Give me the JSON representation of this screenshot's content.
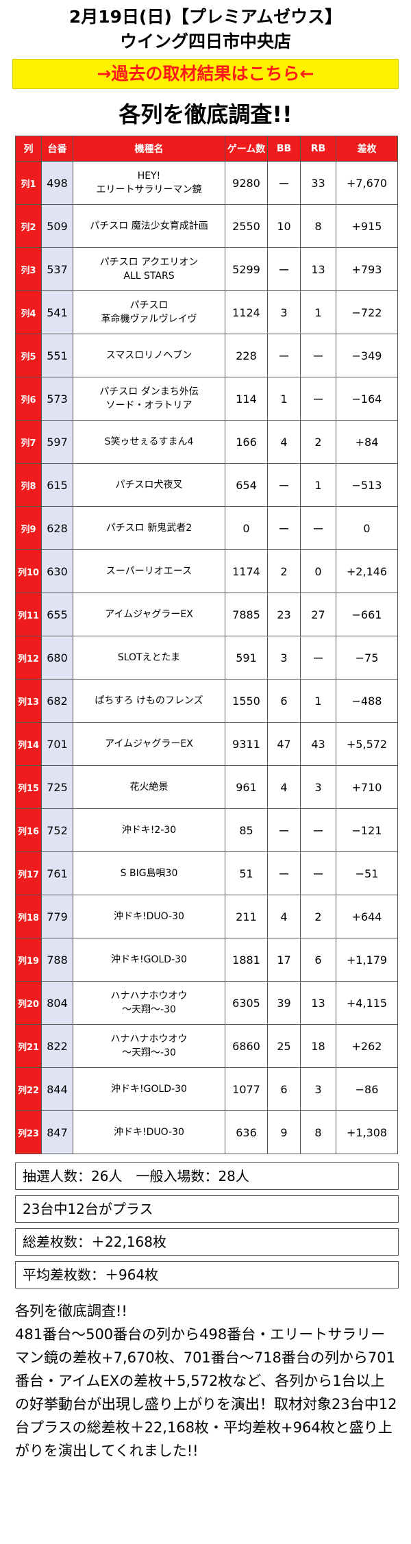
{
  "header": {
    "title": "2月19日(日)【プレミアムゼウス】",
    "store": "ウイング四日市中央店",
    "link": "→過去の取材結果はこちら←",
    "heading": "各列を徹底調査!!"
  },
  "table": {
    "columns": [
      "列",
      "台番",
      "機種名",
      "ゲーム数",
      "BB",
      "RB",
      "差枚"
    ],
    "rows": [
      {
        "row": "列1",
        "unit": "498",
        "name": "HEY!\nエリートサラリーマン鏡",
        "games": "9280",
        "bb": "ー",
        "rb": "33",
        "diff": "+7,670"
      },
      {
        "row": "列2",
        "unit": "509",
        "name": "パチスロ 魔法少女育成計画",
        "games": "2550",
        "bb": "10",
        "rb": "8",
        "diff": "+915"
      },
      {
        "row": "列3",
        "unit": "537",
        "name": "パチスロ アクエリオン\nALL STARS",
        "games": "5299",
        "bb": "ー",
        "rb": "13",
        "diff": "+793"
      },
      {
        "row": "列4",
        "unit": "541",
        "name": "パチスロ\n革命機ヴァルヴレイヴ",
        "games": "1124",
        "bb": "3",
        "rb": "1",
        "diff": "−722"
      },
      {
        "row": "列5",
        "unit": "551",
        "name": "スマスロリノヘブン",
        "games": "228",
        "bb": "ー",
        "rb": "ー",
        "diff": "−349"
      },
      {
        "row": "列6",
        "unit": "573",
        "name": "パチスロ ダンまち外伝\nソード・オラトリア",
        "games": "114",
        "bb": "1",
        "rb": "ー",
        "diff": "−164"
      },
      {
        "row": "列7",
        "unit": "597",
        "name": "S笑ゥせぇるすまん4",
        "games": "166",
        "bb": "4",
        "rb": "2",
        "diff": "+84"
      },
      {
        "row": "列8",
        "unit": "615",
        "name": "パチスロ犬夜叉",
        "games": "654",
        "bb": "ー",
        "rb": "1",
        "diff": "−513"
      },
      {
        "row": "列9",
        "unit": "628",
        "name": "パチスロ 新鬼武者2",
        "games": "0",
        "bb": "ー",
        "rb": "ー",
        "diff": "0"
      },
      {
        "row": "列10",
        "unit": "630",
        "name": "スーパーリオエース",
        "games": "1174",
        "bb": "2",
        "rb": "0",
        "diff": "+2,146"
      },
      {
        "row": "列11",
        "unit": "655",
        "name": "アイムジャグラーEX",
        "games": "7885",
        "bb": "23",
        "rb": "27",
        "diff": "−661"
      },
      {
        "row": "列12",
        "unit": "680",
        "name": "SLOTえとたま",
        "games": "591",
        "bb": "3",
        "rb": "ー",
        "diff": "−75"
      },
      {
        "row": "列13",
        "unit": "682",
        "name": "ぱちすろ けものフレンズ",
        "games": "1550",
        "bb": "6",
        "rb": "1",
        "diff": "−488"
      },
      {
        "row": "列14",
        "unit": "701",
        "name": "アイムジャグラーEX",
        "games": "9311",
        "bb": "47",
        "rb": "43",
        "diff": "+5,572"
      },
      {
        "row": "列15",
        "unit": "725",
        "name": "花火絶景",
        "games": "961",
        "bb": "4",
        "rb": "3",
        "diff": "+710"
      },
      {
        "row": "列16",
        "unit": "752",
        "name": "沖ドキ!2-30",
        "games": "85",
        "bb": "ー",
        "rb": "ー",
        "diff": "−121"
      },
      {
        "row": "列17",
        "unit": "761",
        "name": "S BIG島唄30",
        "games": "51",
        "bb": "ー",
        "rb": "ー",
        "diff": "−51"
      },
      {
        "row": "列18",
        "unit": "779",
        "name": "沖ドキ!DUO-30",
        "games": "211",
        "bb": "4",
        "rb": "2",
        "diff": "+644"
      },
      {
        "row": "列19",
        "unit": "788",
        "name": "沖ドキ!GOLD-30",
        "games": "1881",
        "bb": "17",
        "rb": "6",
        "diff": "+1,179"
      },
      {
        "row": "列20",
        "unit": "804",
        "name": "ハナハナホウオウ\n〜天翔〜-30",
        "games": "6305",
        "bb": "39",
        "rb": "13",
        "diff": "+4,115"
      },
      {
        "row": "列21",
        "unit": "822",
        "name": "ハナハナホウオウ\n〜天翔〜-30",
        "games": "6860",
        "bb": "25",
        "rb": "18",
        "diff": "+262"
      },
      {
        "row": "列22",
        "unit": "844",
        "name": "沖ドキ!GOLD-30",
        "games": "1077",
        "bb": "6",
        "rb": "3",
        "diff": "−86"
      },
      {
        "row": "列23",
        "unit": "847",
        "name": "沖ドキ!DUO-30",
        "games": "636",
        "bb": "9",
        "rb": "8",
        "diff": "+1,308"
      }
    ]
  },
  "summary": {
    "lottery": "抽選人数：26人　一般入場数：28人",
    "plus": "23台中12台がプラス",
    "total": "総差枚数：＋22,168枚",
    "average": "平均差枚数：＋964枚"
  },
  "article": {
    "lead": "各列を徹底調査!!",
    "text": "481番台〜500番台の列から498番台・エリートサラリーマン鏡の差枚+7,670枚、701番台〜718番台の列から701番台・アイムEXの差枚＋5,572枚など、各列から1台以上の好挙動台が出現し盛り上がりを演出！取材対象23台中12台プラスの総差枚＋22,168枚・平均差枚+964枚と盛り上がりを演出してくれました!!"
  },
  "colors": {
    "header_red": "#ee1c1c",
    "link_yellow": "#fff200",
    "link_text": "#ff1a1a",
    "unit_blue": "#dfe3f3"
  }
}
